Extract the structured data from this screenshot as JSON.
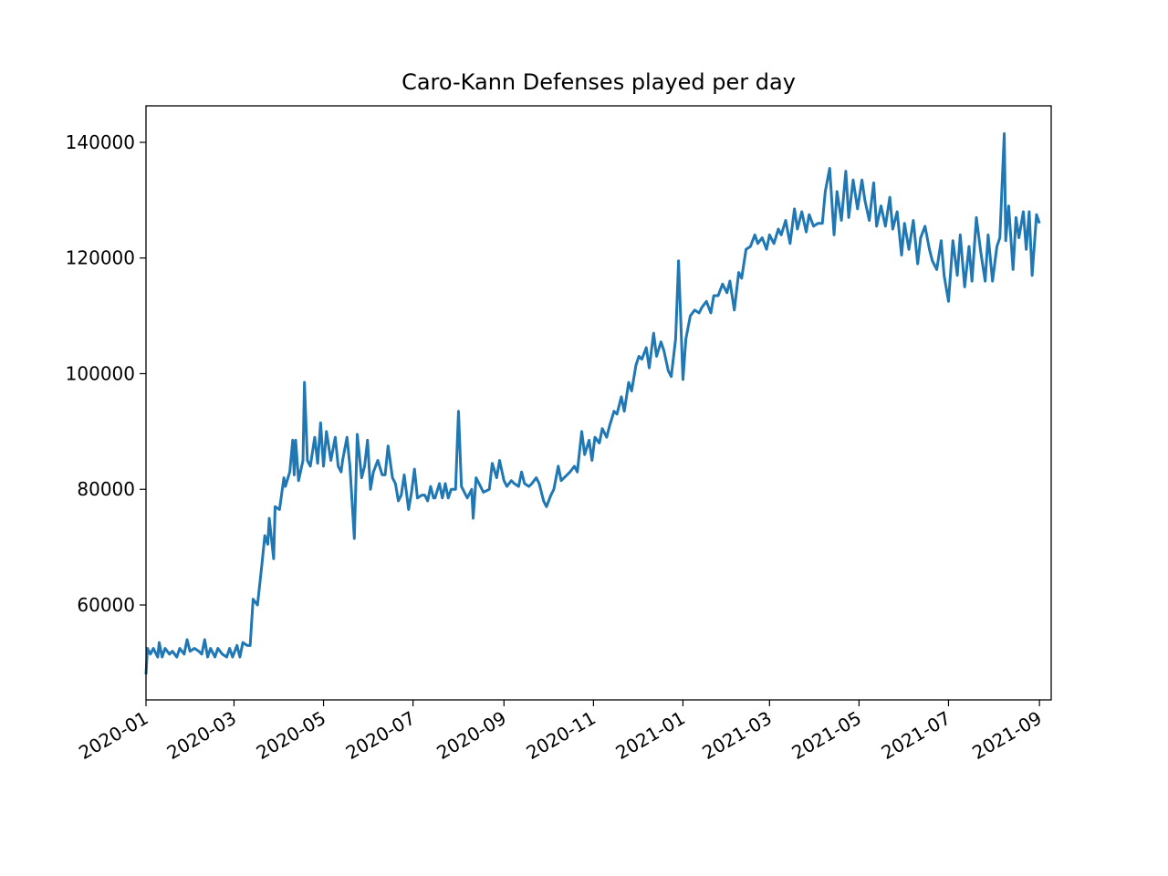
{
  "chart_data": {
    "type": "line",
    "title": "Caro-Kann Defenses played per day",
    "color": "#1f77b4",
    "xlim": [
      18262,
      18879
    ],
    "xticks": [
      {
        "value": 18262,
        "label": "2020-01"
      },
      {
        "value": 18322,
        "label": "2020-03"
      },
      {
        "value": 18383,
        "label": "2020-05"
      },
      {
        "value": 18444,
        "label": "2020-07"
      },
      {
        "value": 18506,
        "label": "2020-09"
      },
      {
        "value": 18567,
        "label": "2020-11"
      },
      {
        "value": 18628,
        "label": "2021-01"
      },
      {
        "value": 18687,
        "label": "2021-03"
      },
      {
        "value": 18748,
        "label": "2021-05"
      },
      {
        "value": 18809,
        "label": "2021-07"
      },
      {
        "value": 18871,
        "label": "2021-09"
      }
    ],
    "ylim": [
      43590,
      146310
    ],
    "yticks": [
      60000,
      80000,
      100000,
      120000,
      140000
    ],
    "x": [
      18262,
      18263,
      18265,
      18267,
      18270,
      18271,
      18273,
      18275,
      18278,
      18280,
      18283,
      18285,
      18288,
      18290,
      18292,
      18295,
      18298,
      18300,
      18302,
      18304,
      18306,
      18309,
      18311,
      18314,
      18317,
      18319,
      18321,
      18324,
      18326,
      18328,
      18331,
      18333,
      18335,
      18338,
      18341,
      18343,
      18345,
      18346,
      18349,
      18350,
      18353,
      18356,
      18357,
      18360,
      18362,
      18363,
      18364,
      18366,
      18369,
      18370,
      18372,
      18374,
      18377,
      18379,
      18381,
      18383,
      18385,
      18388,
      18391,
      18393,
      18395,
      18396,
      18399,
      18401,
      18404,
      18406,
      18409,
      18411,
      18413,
      18415,
      18417,
      18420,
      18423,
      18425,
      18427,
      18430,
      18432,
      18434,
      18436,
      18438,
      18441,
      18443,
      18445,
      18447,
      18450,
      18452,
      18454,
      18456,
      18458,
      18459,
      18462,
      18464,
      18466,
      18468,
      18470,
      18473,
      18475,
      18477,
      18481,
      18484,
      18485,
      18487,
      18490,
      18492,
      18496,
      18498,
      18501,
      18503,
      18506,
      18508,
      18511,
      18513,
      18516,
      18518,
      18520,
      18523,
      18525,
      18528,
      18530,
      18533,
      18535,
      18538,
      18540,
      18543,
      18545,
      18549,
      18551,
      18554,
      18556,
      18559,
      18561,
      18564,
      18566,
      18568,
      18571,
      18573,
      18576,
      18578,
      18581,
      18583,
      18586,
      18588,
      18591,
      18593,
      18596,
      18598,
      18600,
      18603,
      18605,
      18608,
      18610,
      18613,
      18615,
      18618,
      18620,
      18623,
      18625,
      18628,
      18630,
      18633,
      18636,
      18639,
      18641,
      18644,
      18647,
      18649,
      18652,
      18655,
      18658,
      18660,
      18663,
      18666,
      18668,
      18671,
      18674,
      18677,
      18679,
      18682,
      18685,
      18687,
      18690,
      18693,
      18695,
      18698,
      18701,
      18704,
      18706,
      18709,
      18712,
      18714,
      18717,
      18720,
      18723,
      18725,
      18728,
      18731,
      18733,
      18736,
      18739,
      18741,
      18744,
      18747,
      18750,
      18752,
      18755,
      18758,
      18760,
      18763,
      18766,
      18769,
      18771,
      18774,
      18777,
      18779,
      18782,
      18785,
      18788,
      18790,
      18793,
      18796,
      18798,
      18801,
      18804,
      18806,
      18809,
      18812,
      18815,
      18817,
      18820,
      18823,
      18825,
      18828,
      18831,
      18834,
      18836,
      18839,
      18842,
      18844,
      18847,
      18848,
      18850,
      18853,
      18855,
      18857,
      18860,
      18862,
      18864,
      18866,
      18869,
      18871
    ],
    "values": [
      48000,
      52500,
      51500,
      52500,
      51000,
      53500,
      51000,
      52500,
      51500,
      52000,
      51000,
      52500,
      51500,
      54000,
      52000,
      52500,
      52000,
      51500,
      54000,
      51000,
      52500,
      51000,
      52500,
      51500,
      51000,
      52500,
      51000,
      53000,
      51000,
      53500,
      53000,
      53000,
      61000,
      60000,
      67000,
      72000,
      70500,
      75000,
      68000,
      77000,
      76500,
      82000,
      80500,
      83000,
      88500,
      82500,
      88500,
      81500,
      85000,
      98500,
      85000,
      84000,
      89000,
      84500,
      91500,
      84000,
      90000,
      85000,
      89000,
      84000,
      83000,
      85000,
      89000,
      84000,
      71500,
      89500,
      82000,
      84000,
      88500,
      80000,
      83000,
      85000,
      82500,
      82500,
      87500,
      82000,
      81000,
      78000,
      79000,
      82500,
      76500,
      79500,
      83500,
      78500,
      79000,
      79000,
      78000,
      80500,
      78500,
      78500,
      81000,
      78500,
      81000,
      78500,
      80000,
      80000,
      93500,
      80500,
      78500,
      80000,
      75000,
      82000,
      80500,
      79500,
      80000,
      84500,
      82000,
      85000,
      81500,
      80500,
      81500,
      81000,
      80500,
      83000,
      81000,
      80500,
      81000,
      82000,
      81000,
      78000,
      77000,
      79000,
      80000,
      84000,
      81500,
      82500,
      83000,
      84000,
      83000,
      90000,
      86000,
      88500,
      85000,
      89000,
      88000,
      90500,
      89000,
      91000,
      93500,
      93000,
      96000,
      93500,
      98500,
      97000,
      101500,
      103000,
      102500,
      104500,
      101000,
      107000,
      103000,
      105500,
      104000,
      100500,
      99500,
      106000,
      119500,
      99000,
      106000,
      110000,
      111000,
      110500,
      111500,
      112500,
      110500,
      113500,
      113500,
      115500,
      114000,
      116000,
      111000,
      117500,
      116500,
      121500,
      122000,
      124000,
      122500,
      123500,
      121500,
      124000,
      122500,
      125000,
      124000,
      126500,
      122500,
      128500,
      125000,
      128000,
      124500,
      127500,
      125500,
      126000,
      126000,
      131500,
      135500,
      124000,
      131500,
      126500,
      135000,
      127000,
      133500,
      128500,
      133500,
      130000,
      126500,
      133000,
      125500,
      129000,
      125500,
      130500,
      125000,
      128000,
      120500,
      126000,
      121500,
      126500,
      119000,
      123500,
      125500,
      121500,
      119500,
      118000,
      123000,
      117000,
      112500,
      123000,
      117000,
      124000,
      115000,
      122000,
      116000,
      127000,
      121000,
      116000,
      124000,
      116000,
      122000,
      123500,
      141500,
      123000,
      129000,
      118000,
      127000,
      123500,
      128000,
      121500,
      128000,
      117000,
      127500,
      126000
    ]
  }
}
